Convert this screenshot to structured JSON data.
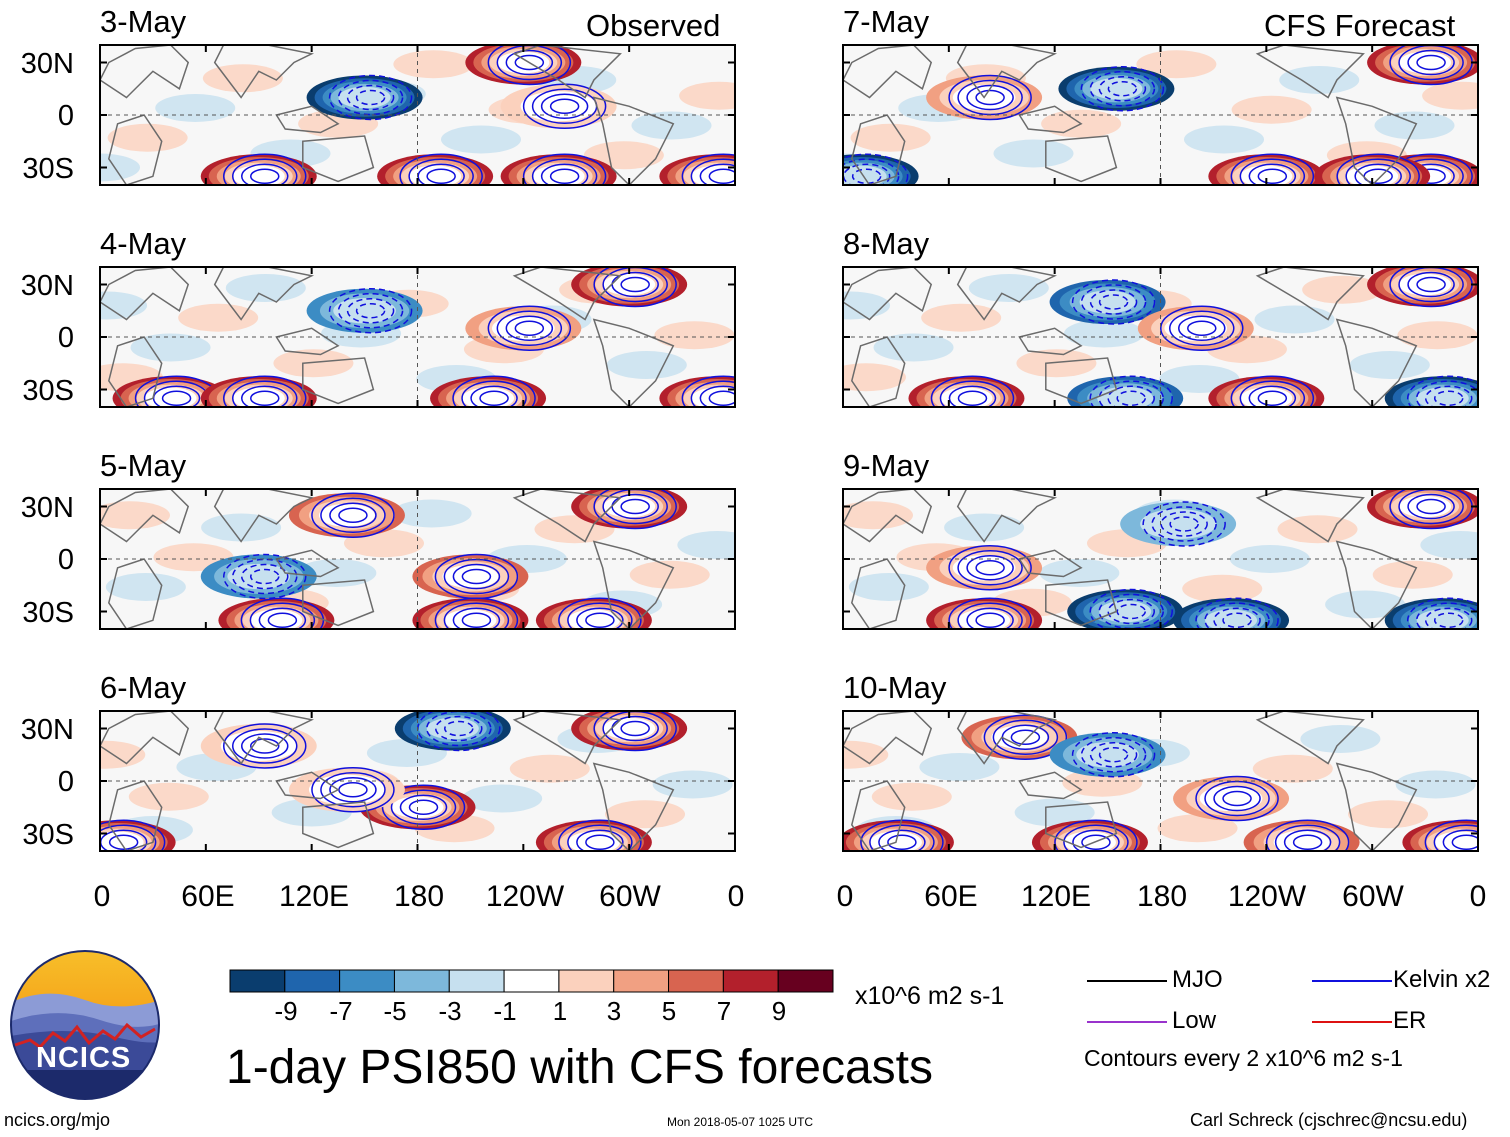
{
  "header": {
    "observed_label": "Observed",
    "forecast_label": "CFS Forecast"
  },
  "chart_data": {
    "type": "heatmap",
    "variable": "1-day PSI850 with CFS forecasts",
    "units": "x10^6 m2 s-1",
    "lat_ticks": [
      "30N",
      "0",
      "30S"
    ],
    "lon_ticks": [
      "0",
      "60E",
      "120E",
      "180",
      "120W",
      "60W",
      "0"
    ],
    "lat_range": [
      -40,
      40
    ],
    "lon_range": [
      0,
      360
    ],
    "observed_panels": [
      {
        "date": "3-May",
        "anomalies": [
          [
            30,
            240,
            9
          ],
          [
            10,
            150,
            -9
          ],
          [
            -35,
            90,
            9
          ],
          [
            -35,
            190,
            9
          ],
          [
            -35,
            260,
            9
          ],
          [
            -35,
            350,
            9
          ],
          [
            5,
            260,
            3
          ]
        ]
      },
      {
        "date": "4-May",
        "anomalies": [
          [
            30,
            300,
            9
          ],
          [
            15,
            150,
            -5
          ],
          [
            -35,
            40,
            9
          ],
          [
            -35,
            90,
            9
          ],
          [
            -35,
            220,
            9
          ],
          [
            -35,
            350,
            9
          ],
          [
            5,
            240,
            5
          ]
        ]
      },
      {
        "date": "5-May",
        "anomalies": [
          [
            30,
            300,
            9
          ],
          [
            25,
            140,
            7
          ],
          [
            -10,
            210,
            7
          ],
          [
            -35,
            100,
            9
          ],
          [
            -35,
            210,
            9
          ],
          [
            -35,
            280,
            9
          ],
          [
            -10,
            90,
            -5
          ]
        ]
      },
      {
        "date": "6-May",
        "anomalies": [
          [
            30,
            300,
            9
          ],
          [
            30,
            200,
            -9
          ],
          [
            -15,
            180,
            9
          ],
          [
            -35,
            10,
            9
          ],
          [
            -35,
            280,
            9
          ],
          [
            20,
            90,
            3
          ],
          [
            -5,
            140,
            3
          ]
        ]
      }
    ],
    "forecast_panels": [
      {
        "date": "7-May",
        "anomalies": [
          [
            30,
            330,
            9
          ],
          [
            15,
            155,
            -9
          ],
          [
            10,
            80,
            5
          ],
          [
            -35,
            10,
            -9
          ],
          [
            -35,
            240,
            9
          ],
          [
            -35,
            330,
            9
          ],
          [
            -35,
            300,
            9
          ]
        ]
      },
      {
        "date": "8-May",
        "anomalies": [
          [
            30,
            330,
            9
          ],
          [
            20,
            150,
            -7
          ],
          [
            5,
            200,
            5
          ],
          [
            -35,
            70,
            9
          ],
          [
            -35,
            160,
            -7
          ],
          [
            -35,
            240,
            9
          ],
          [
            -35,
            340,
            -9
          ]
        ]
      },
      {
        "date": "9-May",
        "anomalies": [
          [
            30,
            330,
            9
          ],
          [
            -5,
            80,
            5
          ],
          [
            -30,
            160,
            -9
          ],
          [
            -35,
            80,
            9
          ],
          [
            -35,
            220,
            -9
          ],
          [
            -35,
            340,
            -9
          ],
          [
            20,
            190,
            -3
          ]
        ]
      },
      {
        "date": "10-May",
        "anomalies": [
          [
            25,
            100,
            7
          ],
          [
            15,
            150,
            -5
          ],
          [
            -10,
            220,
            5
          ],
          [
            -35,
            140,
            9
          ],
          [
            -35,
            30,
            9
          ],
          [
            -35,
            260,
            7
          ],
          [
            -35,
            350,
            9
          ]
        ]
      }
    ],
    "colorbar": {
      "levels": [
        "-9",
        "-7",
        "-5",
        "-3",
        "-1",
        "1",
        "3",
        "5",
        "7",
        "9"
      ],
      "colors": [
        "#0a3d6e",
        "#1f65ad",
        "#3c8cc4",
        "#7db8db",
        "#c6e0ef",
        "#ffffff",
        "#fbd1bd",
        "#f1a082",
        "#d86450",
        "#b3202c",
        "#67001f"
      ]
    },
    "contour_note": "Contours every 2 x10^6 m2 s-1"
  },
  "legend": {
    "items": [
      {
        "label": "MJO",
        "color": "#000000"
      },
      {
        "label": "Kelvin x2",
        "color": "#1010dd"
      },
      {
        "label": "Low",
        "color": "#9933cc"
      },
      {
        "label": "ER",
        "color": "#dd1111"
      }
    ]
  },
  "logo": {
    "text": "NCICS"
  },
  "footer": {
    "title": "1-day PSI850 with CFS forecasts",
    "units": "x10^6 m2 s-1",
    "contour_note": "Contours every 2 x10^6 m2 s-1",
    "url": "ncics.org/mjo",
    "timestamp": "Mon 2018-05-07 1025 UTC",
    "credit": "Carl Schreck (cjschrec@ncsu.edu)"
  }
}
